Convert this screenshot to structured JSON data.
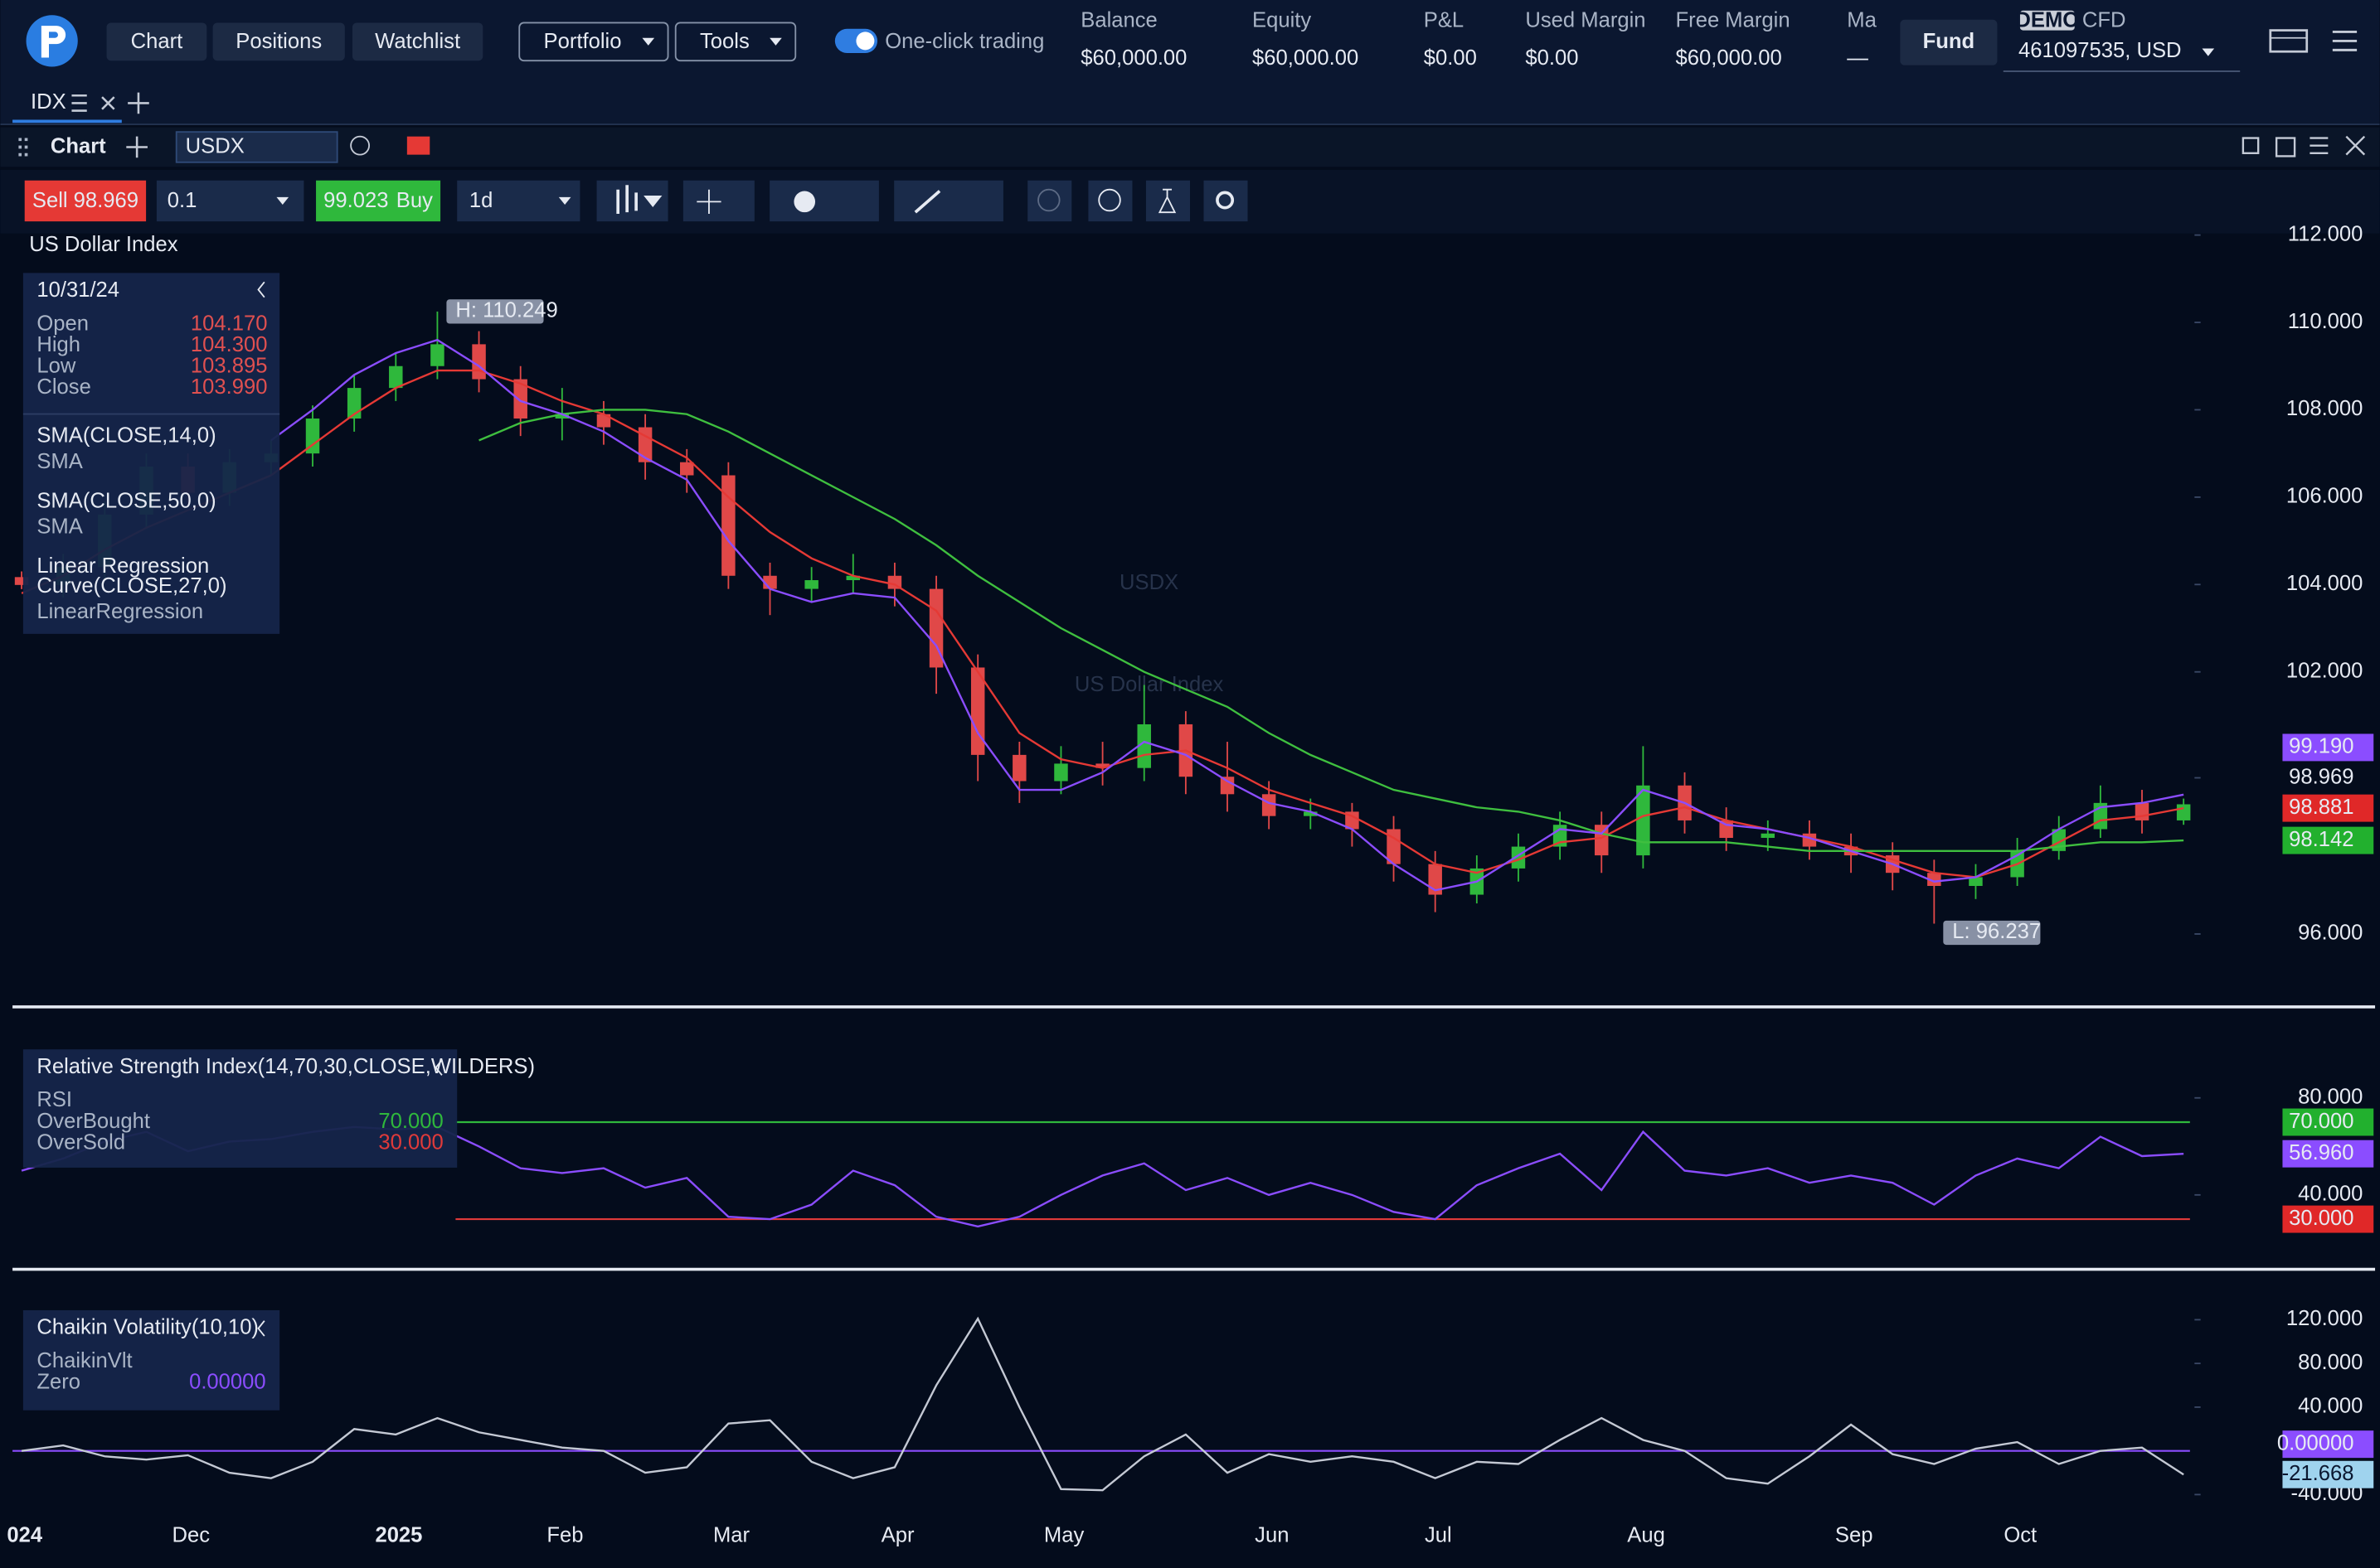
{
  "top_bar": {
    "nav": [
      "Chart",
      "Positions",
      "Watchlist"
    ],
    "menus": [
      "Portfolio",
      "Tools"
    ],
    "toggle": "One-click trading",
    "stats": [
      {
        "label": "Balance",
        "value": "$60,000.00"
      },
      {
        "label": "Equity",
        "value": "$60,000.00"
      },
      {
        "label": "P&L",
        "value": "$0.00"
      },
      {
        "label": "Used Margin",
        "value": "$0.00"
      },
      {
        "label": "Free Margin",
        "value": "$60,000.00"
      },
      {
        "label": "Ma",
        "value": "—"
      }
    ],
    "fund": "Fund",
    "account": {
      "badge": "DEMO",
      "kind": "CFD",
      "id": "461097535, USD"
    }
  },
  "tab": "IDX",
  "panel": {
    "title": "Chart",
    "symbol": "USDX"
  },
  "toolbar": {
    "sell_label": "Sell",
    "sell_price": "98.969",
    "quantity": "0.1",
    "buy_price": "99.023",
    "buy_label": "Buy",
    "interval": "1d"
  },
  "info_panel": {
    "date": "10/31/24",
    "rows": [
      {
        "label": "Open",
        "value": "104.170"
      },
      {
        "label": "High",
        "value": "104.300"
      },
      {
        "label": "Low",
        "value": "103.895"
      },
      {
        "label": "Close",
        "value": "103.990"
      }
    ],
    "indicators": [
      {
        "lines": [
          "SMA(CLOSE,14,0)"
        ],
        "sub": "SMA"
      },
      {
        "lines": [
          "SMA(CLOSE,50,0)"
        ],
        "sub": "SMA"
      },
      {
        "lines": [
          "Linear Regression",
          "Curve(CLOSE,27,0)"
        ],
        "sub": "LinearRegression"
      }
    ]
  },
  "rsi_panel": {
    "title": "Relative Strength Index(14,70,30,CLOSE,WILDERS)",
    "sub": "RSI",
    "rows": [
      {
        "label": "OverBought",
        "value": "70.000",
        "color": "#2fb83c"
      },
      {
        "label": "OverSold",
        "value": "30.000",
        "color": "#e03a3a"
      }
    ]
  },
  "cv_panel": {
    "title": "Chaikin Volatility(10,10)",
    "sub": "ChaikinVlt",
    "rows": [
      {
        "label": "Zero",
        "value": "0.00000",
        "color": "#8b4dff"
      }
    ]
  },
  "chart_data": [
    {
      "type": "candlestick",
      "title": "US Dollar Index",
      "categories": [
        "024",
        null,
        null,
        null,
        "Dec",
        null,
        null,
        null,
        null,
        "2025",
        null,
        null,
        null,
        "Feb",
        null,
        null,
        null,
        "Mar",
        null,
        null,
        null,
        "Apr",
        null,
        null,
        null,
        "May",
        null,
        null,
        null,
        null,
        "Jun",
        null,
        null,
        null,
        "Jul",
        null,
        null,
        null,
        null,
        "Aug",
        null,
        null,
        null,
        null,
        "Sep",
        null,
        null,
        null,
        "Oct",
        null,
        null,
        null,
        null
      ],
      "open": [
        104.17,
        103.99,
        104.4,
        105.6,
        106.7,
        106.1,
        106.8,
        107.0,
        107.8,
        108.5,
        109.0,
        109.5,
        108.7,
        107.8,
        107.9,
        107.6,
        106.8,
        106.5,
        104.2,
        103.9,
        104.1,
        104.2,
        103.9,
        102.1,
        100.1,
        99.5,
        99.9,
        99.8,
        100.8,
        99.6,
        99.2,
        98.7,
        98.8,
        98.4,
        97.6,
        96.9,
        97.5,
        98.0,
        98.5,
        97.8,
        99.4,
        98.6,
        98.2,
        98.3,
        98.0,
        97.8,
        97.4,
        97.1,
        97.3,
        97.9,
        98.4,
        99.0,
        98.6
      ],
      "high": [
        104.3,
        104.7,
        105.9,
        107.0,
        107.0,
        107.1,
        107.3,
        108.1,
        108.8,
        109.3,
        110.249,
        109.8,
        109.0,
        108.5,
        108.2,
        107.9,
        107.1,
        106.8,
        104.5,
        104.4,
        104.7,
        104.5,
        104.2,
        102.4,
        100.4,
        100.3,
        100.4,
        101.7,
        101.1,
        100.4,
        99.5,
        99.1,
        99.0,
        98.7,
        97.9,
        97.8,
        98.3,
        98.8,
        98.8,
        100.3,
        99.7,
        98.9,
        98.6,
        98.6,
        98.3,
        98.1,
        97.7,
        97.6,
        98.2,
        98.7,
        99.4,
        99.3,
        99.1
      ],
      "low": [
        103.895,
        103.7,
        104.1,
        105.3,
        105.8,
        105.8,
        106.5,
        106.7,
        107.5,
        108.2,
        108.7,
        108.4,
        107.4,
        107.3,
        107.2,
        106.4,
        106.1,
        103.9,
        103.3,
        103.6,
        103.8,
        103.5,
        101.5,
        99.5,
        99.0,
        99.2,
        99.4,
        99.5,
        99.2,
        98.8,
        98.4,
        98.4,
        98.0,
        97.2,
        96.5,
        96.7,
        97.2,
        97.7,
        97.4,
        97.5,
        98.3,
        97.9,
        97.9,
        97.7,
        97.4,
        97.0,
        96.237,
        96.8,
        97.1,
        97.7,
        98.2,
        98.3,
        98.5
      ],
      "close": [
        103.99,
        104.4,
        105.6,
        106.7,
        106.1,
        106.8,
        107.0,
        107.8,
        108.5,
        109.0,
        109.5,
        108.7,
        107.8,
        107.9,
        107.6,
        106.8,
        106.5,
        104.2,
        103.9,
        104.1,
        104.2,
        103.9,
        102.1,
        100.1,
        99.5,
        99.9,
        99.8,
        100.8,
        99.6,
        99.2,
        98.7,
        98.8,
        98.4,
        97.6,
        96.9,
        97.5,
        98.0,
        98.5,
        97.8,
        99.4,
        98.6,
        98.2,
        98.3,
        98.0,
        97.8,
        97.4,
        97.1,
        97.3,
        97.9,
        98.4,
        99.0,
        98.6,
        98.969
      ],
      "up_color": "#2fb83c",
      "down_color": "#e04848",
      "series": [
        {
          "color": "#e53935",
          "values": [
            103.8,
            104.2,
            104.8,
            105.3,
            105.7,
            106.1,
            106.5,
            107.2,
            107.9,
            108.5,
            108.9,
            108.9,
            108.6,
            108.2,
            107.9,
            107.4,
            106.9,
            106.0,
            105.2,
            104.6,
            104.2,
            104.0,
            103.4,
            102.0,
            100.6,
            100.0,
            99.8,
            100.1,
            100.2,
            99.8,
            99.3,
            99.0,
            98.7,
            98.2,
            97.6,
            97.4,
            97.7,
            98.1,
            98.2,
            98.7,
            98.9,
            98.6,
            98.4,
            98.2,
            98.0,
            97.7,
            97.4,
            97.3,
            97.6,
            98.1,
            98.6,
            98.7,
            98.881
          ]
        },
        {
          "color": "#3fbf3f",
          "values": [
            null,
            null,
            null,
            null,
            null,
            null,
            null,
            null,
            null,
            null,
            null,
            107.3,
            107.7,
            107.9,
            108.0,
            108.0,
            107.9,
            107.5,
            107.0,
            106.5,
            106.0,
            105.5,
            104.9,
            104.2,
            103.6,
            103.0,
            102.5,
            102.0,
            101.6,
            101.2,
            100.6,
            100.1,
            99.7,
            99.3,
            99.1,
            98.9,
            98.8,
            98.6,
            98.3,
            98.1,
            98.1,
            98.1,
            98.0,
            97.9,
            97.9,
            97.9,
            97.9,
            97.9,
            97.9,
            98.0,
            98.1,
            98.1,
            98.142
          ]
        },
        {
          "color": "#8b4dff",
          "values": [
            null,
            null,
            null,
            null,
            null,
            null,
            107.3,
            108.0,
            108.8,
            109.3,
            109.6,
            109.0,
            108.2,
            107.9,
            107.5,
            106.9,
            106.4,
            105.0,
            103.9,
            103.6,
            103.8,
            103.7,
            102.6,
            100.6,
            99.3,
            99.3,
            99.7,
            100.4,
            100.1,
            99.5,
            99.0,
            98.8,
            98.4,
            97.6,
            97.0,
            97.2,
            97.8,
            98.4,
            98.3,
            99.3,
            99.0,
            98.5,
            98.4,
            98.2,
            97.9,
            97.6,
            97.2,
            97.3,
            97.8,
            98.4,
            98.9,
            99.0,
            99.19
          ]
        }
      ],
      "ylim": [
        94.4,
        112.0
      ],
      "yticks": [
        {
          "value": 112,
          "label": "112.000"
        },
        {
          "value": 110,
          "label": "110.000"
        },
        {
          "value": 108,
          "label": "108.000"
        },
        {
          "value": 106,
          "label": "106.000"
        },
        {
          "value": 104,
          "label": "104.000"
        },
        {
          "value": 102,
          "label": "102.000"
        },
        {
          "value": 96,
          "label": "96.000"
        }
      ],
      "tags": [
        {
          "value": 99.19,
          "label": "99.190",
          "color": "#8b4dff"
        },
        {
          "value": 98.969,
          "label": "98.969"
        },
        {
          "value": 98.881,
          "label": "98.881",
          "color": "#e02828"
        },
        {
          "value": 98.142,
          "label": "98.142",
          "color": "#22b02e"
        }
      ],
      "high_label": "H: 110.249",
      "low_label": "L: 96.237"
    },
    {
      "type": "line",
      "series": [
        {
          "color": "#8b4dff",
          "values": [
            50,
            55,
            62,
            66,
            58,
            62,
            63,
            66,
            68,
            67,
            68,
            60,
            51,
            49,
            51,
            43,
            47,
            31,
            30,
            36,
            50,
            44,
            31,
            27,
            31,
            40,
            48,
            53,
            42,
            47,
            40,
            45,
            40,
            33,
            30,
            44,
            51,
            57,
            42,
            66,
            50,
            48,
            51,
            45,
            48,
            45,
            36,
            48,
            55,
            51,
            64,
            56,
            56.96
          ]
        }
      ],
      "levels": [
        {
          "value": 70,
          "color": "#2fb83c"
        },
        {
          "value": 30,
          "color": "#e03a3a"
        }
      ],
      "ylim": [
        10.6,
        115
      ],
      "yticks": [
        {
          "value": 80,
          "label": "80.000"
        },
        {
          "value": 40,
          "label": "40.000"
        }
      ],
      "tags": [
        {
          "value": 70,
          "label": "70.000",
          "color": "#22b02e"
        },
        {
          "value": 56.96,
          "label": "56.960",
          "color": "#8b4dff"
        },
        {
          "value": 30,
          "label": "30.000",
          "color": "#e02828"
        }
      ]
    },
    {
      "type": "line",
      "series": [
        {
          "color": "#c4c9d4",
          "values": [
            0,
            5,
            -5,
            -8,
            -4,
            -20,
            -25,
            -10,
            20,
            15,
            30,
            17,
            10,
            3,
            0,
            -20,
            -15,
            25,
            28,
            -10,
            -25,
            -15,
            60,
            121,
            40,
            -35,
            -36,
            -5,
            15,
            -20,
            -3,
            -10,
            -5,
            -10,
            -25,
            -10,
            -12,
            10,
            30,
            10,
            0,
            -25,
            -30,
            -5,
            24,
            -3,
            -12,
            2,
            8,
            -12,
            0,
            3,
            -21.668
          ]
        }
      ],
      "levels": [
        {
          "value": 0,
          "color": "#8b4dff"
        }
      ],
      "ylim": [
        -60,
        162
      ],
      "yticks": [
        {
          "value": 120,
          "label": "120.000"
        },
        {
          "value": 80,
          "label": "80.000"
        },
        {
          "value": 40,
          "label": "40.000"
        },
        {
          "value": -40,
          "label": "-40.000"
        }
      ],
      "tags": [
        {
          "value": 0,
          "label": "0.00000",
          "color": "#8b4dff"
        },
        {
          "value": -21.668,
          "label": "-21.668",
          "color": "#9fd3ee",
          "text_color": "#0b1730"
        }
      ]
    }
  ]
}
